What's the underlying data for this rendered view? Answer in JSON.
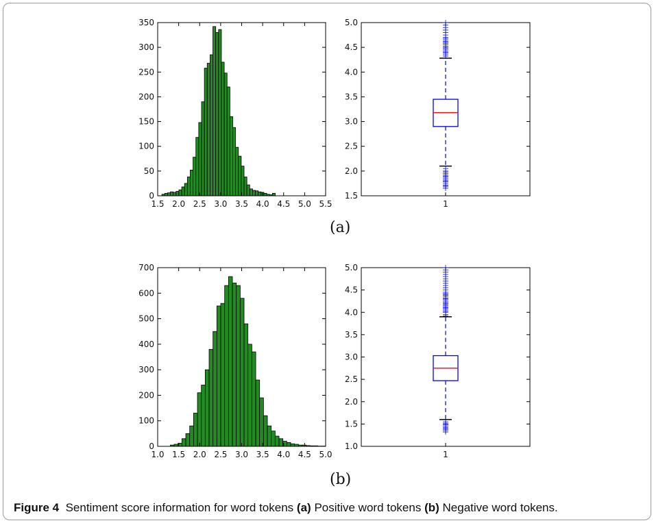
{
  "panels": [
    {
      "label": "(a)"
    },
    {
      "label": "(b)"
    }
  ],
  "caption": {
    "figure": "Figure 4",
    "text1": "Sentiment score information for word tokens",
    "a": "(a)",
    "text2": "Positive word tokens",
    "b": "(b)",
    "text3": "Negative word tokens."
  },
  "chart_data": [
    {
      "type": "bar",
      "panel": "(a)",
      "subtype": "histogram",
      "bar_color": "#228B22",
      "xlim": [
        1.5,
        5.5
      ],
      "ylim": [
        0,
        350
      ],
      "xticks": [
        1.5,
        2.0,
        2.5,
        3.0,
        3.5,
        4.0,
        4.5,
        5.0,
        5.5
      ],
      "yticks": [
        0,
        50,
        100,
        150,
        200,
        250,
        300,
        350
      ],
      "bin_start": 1.6,
      "bin_width": 0.0675,
      "values": [
        3,
        5,
        6,
        8,
        7,
        9,
        12,
        18,
        25,
        38,
        52,
        78,
        118,
        148,
        190,
        258,
        268,
        285,
        342,
        330,
        336,
        270,
        248,
        220,
        160,
        138,
        98,
        80,
        60,
        38,
        22,
        14,
        11,
        10,
        8,
        7,
        5,
        3,
        2,
        5
      ]
    },
    {
      "type": "box",
      "panel": "(a)",
      "ylim": [
        1.5,
        5.0
      ],
      "yticks": [
        1.5,
        2.0,
        2.5,
        3.0,
        3.5,
        4.0,
        4.5,
        5.0
      ],
      "xticks": [
        "1"
      ],
      "median": 3.18,
      "q1": 2.9,
      "q3": 3.45,
      "whisker_low": 2.1,
      "whisker_high": 4.28,
      "outliers_high": [
        4.32,
        4.35,
        4.38,
        4.4,
        4.42,
        4.45,
        4.48,
        4.5,
        4.52,
        4.55,
        4.58,
        4.6,
        4.62,
        4.65,
        4.68,
        4.7,
        4.75,
        4.8,
        4.85,
        4.9,
        4.95,
        5.0
      ],
      "outliers_low": [
        2.05,
        2.0,
        1.98,
        1.95,
        1.92,
        1.9,
        1.88,
        1.85,
        1.82,
        1.8,
        1.78,
        1.75,
        1.72,
        1.7,
        1.68,
        1.65
      ]
    },
    {
      "type": "bar",
      "panel": "(b)",
      "subtype": "histogram",
      "bar_color": "#228B22",
      "xlim": [
        1.0,
        5.0
      ],
      "ylim": [
        0,
        700
      ],
      "xticks": [
        1.0,
        1.5,
        2.0,
        2.5,
        3.0,
        3.5,
        4.0,
        4.5,
        5.0
      ],
      "yticks": [
        0,
        100,
        200,
        300,
        400,
        500,
        600,
        700
      ],
      "bin_start": 1.3,
      "bin_width": 0.0925,
      "values": [
        5,
        8,
        12,
        30,
        50,
        80,
        130,
        210,
        240,
        300,
        380,
        450,
        550,
        560,
        630,
        665,
        640,
        630,
        580,
        480,
        400,
        370,
        260,
        190,
        120,
        80,
        60,
        40,
        30,
        20,
        15,
        10,
        8,
        5,
        5,
        3,
        2,
        2,
        1,
        1
      ]
    },
    {
      "type": "box",
      "panel": "(b)",
      "ylim": [
        1.0,
        5.0
      ],
      "yticks": [
        1.0,
        1.5,
        2.0,
        2.5,
        3.0,
        3.5,
        4.0,
        4.5,
        5.0
      ],
      "xticks": [
        "1"
      ],
      "median": 2.75,
      "q1": 2.47,
      "q3": 3.03,
      "whisker_low": 1.6,
      "whisker_high": 3.9,
      "outliers_high": [
        3.92,
        3.95,
        4.0,
        4.02,
        4.05,
        4.08,
        4.1,
        4.12,
        4.15,
        4.18,
        4.2,
        4.22,
        4.25,
        4.28,
        4.3,
        4.32,
        4.35,
        4.38,
        4.4,
        4.42,
        4.45,
        4.5,
        4.55,
        4.6,
        4.65,
        4.7,
        4.75,
        4.8,
        4.85,
        4.9,
        4.95,
        5.0
      ],
      "outliers_low": [
        1.55,
        1.52,
        1.5,
        1.48,
        1.45,
        1.42,
        1.4,
        1.38,
        1.35,
        1.32
      ]
    }
  ]
}
